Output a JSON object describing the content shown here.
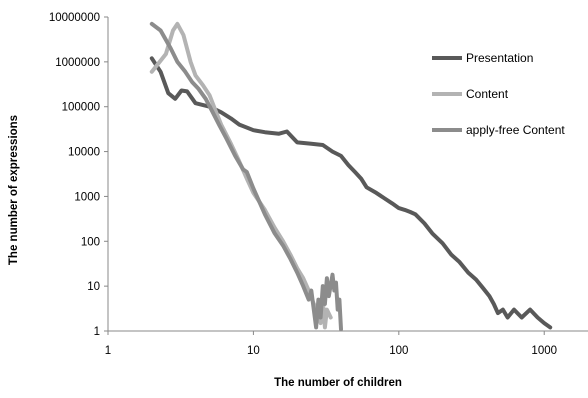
{
  "chart_data": {
    "type": "line",
    "xlabel": "The number of children",
    "ylabel": "The number of expressions",
    "x_scale": "log",
    "y_scale": "log",
    "xlim": [
      1,
      2000
    ],
    "ylim": [
      1,
      10000000
    ],
    "x_ticks": [
      "1",
      "10",
      "100",
      "1000"
    ],
    "x_tick_values": [
      1,
      10,
      100,
      1000
    ],
    "y_ticks": [
      "1",
      "10",
      "100",
      "1000",
      "10000",
      "100000",
      "1000000",
      "10000000"
    ],
    "y_tick_values": [
      1,
      10,
      100,
      1000,
      10000,
      100000,
      1000000,
      10000000
    ],
    "grid": false,
    "legend_position": "right",
    "series": [
      {
        "name": "Presentation",
        "color": "#595959",
        "points": [
          [
            2,
            1200000
          ],
          [
            2.3,
            600000
          ],
          [
            2.6,
            200000
          ],
          [
            2.9,
            150000
          ],
          [
            3.2,
            230000
          ],
          [
            3.5,
            220000
          ],
          [
            4,
            120000
          ],
          [
            5,
            100000
          ],
          [
            6,
            75000
          ],
          [
            7,
            55000
          ],
          [
            8,
            40000
          ],
          [
            10,
            30000
          ],
          [
            12,
            27000
          ],
          [
            15,
            25000
          ],
          [
            17,
            28000
          ],
          [
            20,
            16000
          ],
          [
            25,
            15000
          ],
          [
            30,
            14000
          ],
          [
            35,
            10000
          ],
          [
            40,
            8000
          ],
          [
            45,
            5000
          ],
          [
            50,
            3500
          ],
          [
            55,
            2500
          ],
          [
            60,
            1600
          ],
          [
            70,
            1200
          ],
          [
            80,
            900
          ],
          [
            90,
            700
          ],
          [
            100,
            550
          ],
          [
            110,
            500
          ],
          [
            120,
            450
          ],
          [
            130,
            400
          ],
          [
            150,
            250
          ],
          [
            170,
            150
          ],
          [
            200,
            90
          ],
          [
            230,
            50
          ],
          [
            260,
            35
          ],
          [
            300,
            20
          ],
          [
            340,
            14
          ],
          [
            380,
            9
          ],
          [
            420,
            6
          ],
          [
            450,
            4
          ],
          [
            480,
            2.5
          ],
          [
            520,
            3
          ],
          [
            560,
            2
          ],
          [
            620,
            3
          ],
          [
            700,
            2
          ],
          [
            800,
            3
          ],
          [
            900,
            2
          ],
          [
            1000,
            1.5
          ],
          [
            1100,
            1.2
          ]
        ]
      },
      {
        "name": "Content",
        "color": "#b3b3b3",
        "points": [
          [
            2,
            600000
          ],
          [
            2.5,
            1500000
          ],
          [
            2.8,
            5000000
          ],
          [
            3,
            7000000
          ],
          [
            3.3,
            4000000
          ],
          [
            3.7,
            1000000
          ],
          [
            4,
            500000
          ],
          [
            4.5,
            300000
          ],
          [
            5,
            180000
          ],
          [
            5.5,
            80000
          ],
          [
            6,
            40000
          ],
          [
            7,
            15000
          ],
          [
            8,
            6000
          ],
          [
            9,
            2500
          ],
          [
            10,
            1200
          ],
          [
            12,
            500
          ],
          [
            14,
            200
          ],
          [
            16,
            100
          ],
          [
            18,
            50
          ],
          [
            20,
            25
          ],
          [
            22,
            15
          ],
          [
            24,
            8
          ],
          [
            26,
            4
          ],
          [
            28,
            3
          ],
          [
            29,
            1.5
          ],
          [
            30,
            5
          ],
          [
            31,
            1.2
          ],
          [
            32,
            3
          ],
          [
            34,
            2
          ]
        ]
      },
      {
        "name": "apply-free Content",
        "color": "#8c8c8c",
        "points": [
          [
            2,
            7000000
          ],
          [
            2.3,
            5000000
          ],
          [
            2.7,
            2000000
          ],
          [
            3,
            1000000
          ],
          [
            3.4,
            600000
          ],
          [
            3.8,
            350000
          ],
          [
            4.2,
            250000
          ],
          [
            4.7,
            150000
          ],
          [
            5.2,
            80000
          ],
          [
            5.8,
            40000
          ],
          [
            6.5,
            20000
          ],
          [
            7.5,
            8000
          ],
          [
            8.5,
            4000
          ],
          [
            9,
            3500
          ],
          [
            10,
            1500
          ],
          [
            12,
            400
          ],
          [
            14,
            150
          ],
          [
            16,
            80
          ],
          [
            18,
            40
          ],
          [
            20,
            20
          ],
          [
            22,
            10
          ],
          [
            24,
            5
          ],
          [
            25,
            8
          ],
          [
            26,
            3
          ],
          [
            27,
            1.2
          ],
          [
            28,
            5
          ],
          [
            29,
            2
          ],
          [
            30,
            10
          ],
          [
            31,
            4
          ],
          [
            32,
            15
          ],
          [
            33,
            6
          ],
          [
            35,
            18
          ],
          [
            36,
            8
          ],
          [
            37,
            12
          ],
          [
            38,
            3
          ],
          [
            39,
            5
          ],
          [
            40,
            1.1
          ]
        ]
      }
    ]
  }
}
